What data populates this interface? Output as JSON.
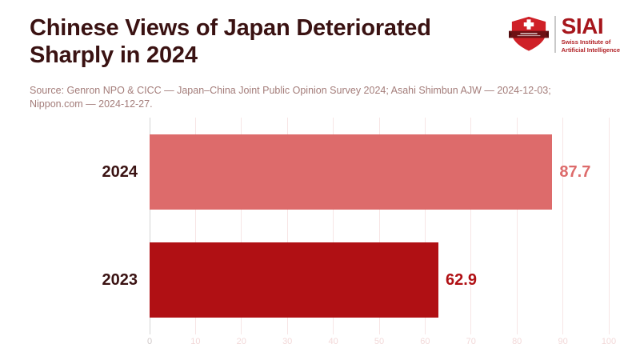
{
  "header": {
    "title_lines": [
      "Chinese Views of Japan Deteriorated",
      "Sharply in 2024"
    ],
    "source_lines": [
      "Source: Genron NPO & CICC — Japan–China Joint Public Opinion Survey 2024; Asahi Shimbun AJW — 2024-12-03;",
      "Nippon.com — 2024-12-27."
    ]
  },
  "logo": {
    "acronym": "SIAI",
    "name_lines": [
      "Swiss Institute of",
      "Artificial Intelligence"
    ],
    "shield_icon": "swiss-shield-icon",
    "colors": {
      "shield_red": "#cf2027",
      "banner_dark_red": "#6e1114",
      "cross_white": "#ffffff",
      "text_red": "#a6161c",
      "divider_gray": "#c9c9c9"
    }
  },
  "chart_data": {
    "type": "bar",
    "orientation": "horizontal",
    "title": "Chinese Views of Japan Deteriorated Sharply in 2024",
    "categories": [
      "2024",
      "2023"
    ],
    "values": [
      87.7,
      62.9
    ],
    "value_labels": [
      "87.7",
      "62.9"
    ],
    "bar_colors": [
      "#dd6b6b",
      "#b01014"
    ],
    "value_label_colors": [
      "#dd6b6b",
      "#b01014"
    ],
    "xlabel": "",
    "ylabel": "",
    "xlim": [
      0,
      100
    ],
    "x_ticks": [
      0,
      10,
      20,
      30,
      40,
      50,
      60,
      70,
      80,
      90,
      100
    ],
    "grid": true,
    "legend": false,
    "grid_color": "#f7e5e5",
    "zero_line_color": "#d4d4d4",
    "tick_label_color": "#f2d8d8",
    "zero_tick_label_color": "#cfc8c8",
    "category_label_color": "#3a1212"
  }
}
